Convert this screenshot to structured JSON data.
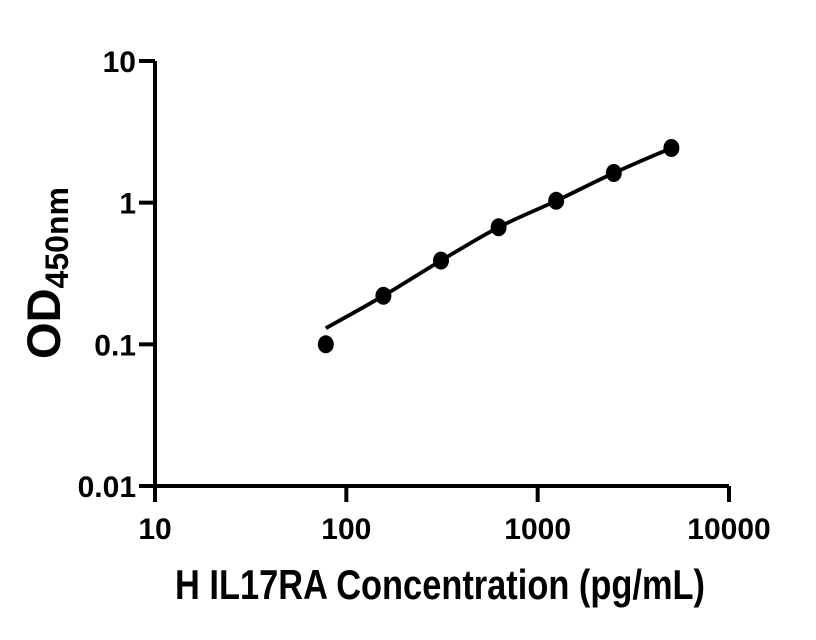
{
  "figure": {
    "background_color": "#ffffff",
    "ink_color": "#000000"
  },
  "chart_data": {
    "type": "scatter",
    "title": "",
    "xlabel": "H IL17RA Concentration (pg/mL)",
    "ylabel_main": "OD",
    "ylabel_subscript": "450nm",
    "x_scale": "log",
    "y_scale": "log",
    "xlim": [
      10,
      10000
    ],
    "ylim": [
      0.01,
      10
    ],
    "x_ticks": [
      10,
      100,
      1000,
      10000
    ],
    "x_tick_labels": [
      "10",
      "100",
      "1000",
      "10000"
    ],
    "y_ticks": [
      10,
      1,
      0.1,
      0.01
    ],
    "y_tick_labels": [
      "10",
      "1",
      "0.1",
      "0.01"
    ],
    "grid": false,
    "legend": false,
    "series": [
      {
        "marker": "filled-circle",
        "marker_color": "#000000",
        "line_color": "#000000",
        "x": [
          78.125,
          156.25,
          312.5,
          625,
          1250,
          2500,
          5000
        ],
        "y": [
          0.1,
          0.22,
          0.39,
          0.67,
          1.03,
          1.62,
          2.43
        ],
        "fit_line_y": [
          0.13,
          0.22,
          0.39,
          0.67,
          1.03,
          1.62,
          2.43
        ]
      }
    ]
  }
}
